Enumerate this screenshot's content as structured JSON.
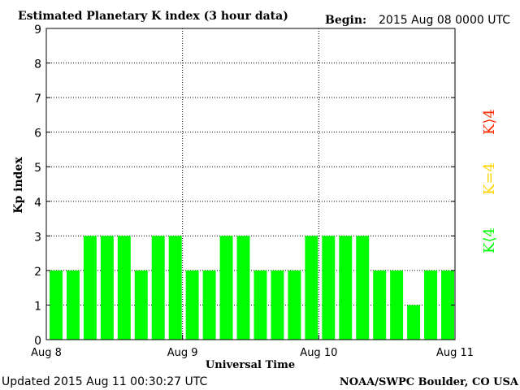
{
  "header": {
    "title": "Estimated Planetary K index (3 hour data)",
    "begin_label": "Begin:",
    "begin_value": "2015 Aug 08 0000 UTC"
  },
  "footer": {
    "updated": "Updated 2015 Aug 11 00:30:27 UTC",
    "credit": "NOAA/SWPC Boulder, CO USA"
  },
  "legend": {
    "items": [
      {
        "label": "K>4",
        "color": "#ff2a00"
      },
      {
        "label": "K=4",
        "color": "#ffd400"
      },
      {
        "label": "K<4",
        "color": "#00ff00"
      }
    ],
    "display": [
      "K⟩4",
      "K=4",
      "K⟨4"
    ]
  },
  "chart_data": {
    "type": "bar",
    "title": "Estimated Planetary K index (3 hour data)",
    "xlabel": "Universal Time",
    "ylabel": "Kp index",
    "ylim": [
      0,
      9
    ],
    "yticks": [
      "0",
      "1",
      "2",
      "3",
      "4",
      "5",
      "6",
      "7",
      "8",
      "9"
    ],
    "xticks": [
      "Aug 8",
      "Aug 9",
      "Aug 10",
      "Aug 11"
    ],
    "grid": true,
    "values": [
      2,
      2,
      3,
      3,
      3,
      2,
      3,
      3,
      2,
      2,
      3,
      3,
      2,
      2,
      2,
      3,
      3,
      3,
      3,
      2,
      2,
      1,
      2,
      2
    ],
    "bar_color": "#00ff00"
  }
}
